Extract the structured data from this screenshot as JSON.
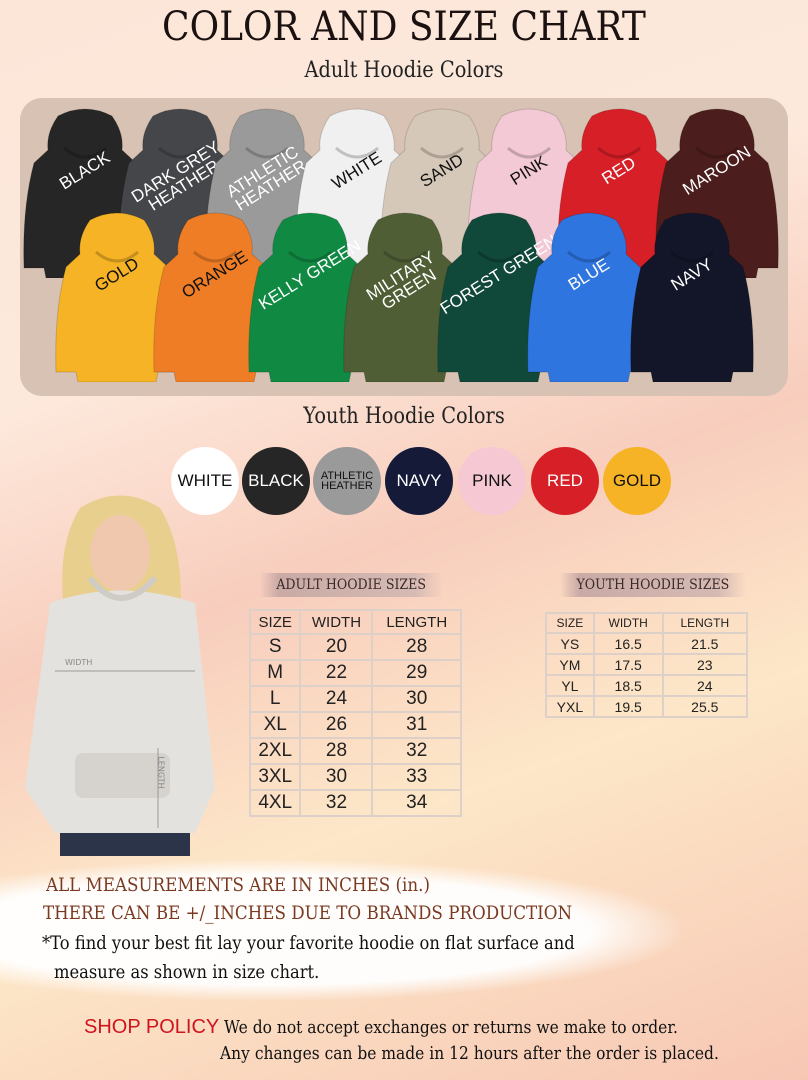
{
  "title": "COLOR AND SIZE CHART",
  "adult_colors_heading": "Adult Hoodie Colors",
  "adult_colors": [
    {
      "label": "BLACK",
      "color": "#262626",
      "text": "#ffffff"
    },
    {
      "label": "DARK GREY HEATHER",
      "color": "#45464a",
      "text": "#ffffff"
    },
    {
      "label": "ATHLETIC HEATHER",
      "color": "#9a9a9a",
      "text": "#ffffff"
    },
    {
      "label": "WHITE",
      "color": "#f0f0f0",
      "text": "#111111"
    },
    {
      "label": "SAND",
      "color": "#d6c8b8",
      "text": "#111111"
    },
    {
      "label": "PINK",
      "color": "#f3c9d6",
      "text": "#111111"
    },
    {
      "label": "RED",
      "color": "#d71f27",
      "text": "#ffffff"
    },
    {
      "label": "MAROON",
      "color": "#4b1d1c",
      "text": "#ffffff"
    },
    {
      "label": "GOLD",
      "color": "#f5b325",
      "text": "#111111"
    },
    {
      "label": "ORANGE",
      "color": "#ef7d25",
      "text": "#111111"
    },
    {
      "label": "KELLY GREEN",
      "color": "#108a43",
      "text": "#ffffff"
    },
    {
      "label": "MILITARY GREEN",
      "color": "#4f5e35",
      "text": "#ffffff"
    },
    {
      "label": "FOREST GREEN",
      "color": "#10483a",
      "text": "#ffffff"
    },
    {
      "label": "BLUE",
      "color": "#2f75df",
      "text": "#ffffff"
    },
    {
      "label": "NAVY",
      "color": "#121628",
      "text": "#ffffff"
    }
  ],
  "youth_colors_heading": "Youth Hoodie Colors",
  "youth_colors": [
    {
      "label": "WHITE",
      "color": "#ffffff",
      "text": "#111111"
    },
    {
      "label": "BLACK",
      "color": "#262626",
      "text": "#ffffff"
    },
    {
      "label": "ATHLETIC HEATHER",
      "color": "#9a9a9a",
      "text": "#111111"
    },
    {
      "label": "NAVY",
      "color": "#141a38",
      "text": "#ffffff"
    },
    {
      "label": "PINK",
      "color": "#f5c8d4",
      "text": "#111111"
    },
    {
      "label": "RED",
      "color": "#d71f27",
      "text": "#ffffff"
    },
    {
      "label": "GOLD",
      "color": "#f5b325",
      "text": "#111111"
    }
  ],
  "model_image": {
    "width_label": "WIDTH",
    "length_label": "LENGTH"
  },
  "adult_sizes": {
    "heading": "ADULT HOODIE SIZES",
    "columns": [
      "SIZE",
      "WIDTH",
      "LENGTH"
    ],
    "rows": [
      [
        "S",
        "20",
        "28"
      ],
      [
        "M",
        "22",
        "29"
      ],
      [
        "L",
        "24",
        "30"
      ],
      [
        "XL",
        "26",
        "31"
      ],
      [
        "2XL",
        "28",
        "32"
      ],
      [
        "3XL",
        "30",
        "33"
      ],
      [
        "4XL",
        "32",
        "34"
      ]
    ]
  },
  "youth_sizes": {
    "heading": "YOUTH HOODIE SIZES",
    "columns": [
      "SIZE",
      "WIDTH",
      "LENGTH"
    ],
    "rows": [
      [
        "YS",
        "16.5",
        "21.5"
      ],
      [
        "YM",
        "17.5",
        "23"
      ],
      [
        "YL",
        "18.5",
        "24"
      ],
      [
        "YXL",
        "19.5",
        "25.5"
      ]
    ]
  },
  "notes": {
    "line1": "ALL MEASUREMENTS ARE IN INCHES (in.)",
    "line2": "THERE CAN BE +/_INCHES DUE TO BRANDS PRODUCTION",
    "line3": "*To find your best fit lay your favorite hoodie on flat surface and",
    "line4": "measure as shown in size chart."
  },
  "policy": {
    "label": "SHOP POLICY",
    "line1": "We do not accept exchanges or returns we make to order.",
    "line2": "Any changes can be made in 12 hours after the order is placed."
  }
}
